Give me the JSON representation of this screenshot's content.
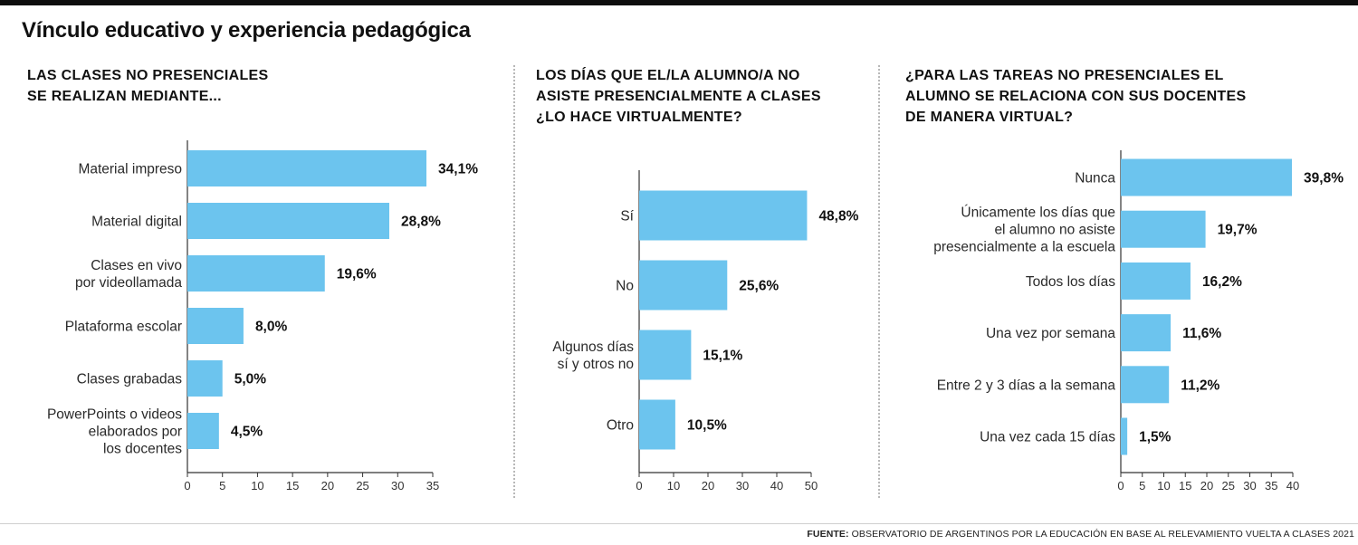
{
  "title": "Vínculo educativo y experiencia pedagógica",
  "footer": {
    "label": "FUENTE:",
    "text": "OBSERVATORIO DE ARGENTINOS POR LA EDUCACIÓN EN BASE AL RELEVAMIENTO VUELTA A CLASES 2021"
  },
  "colors": {
    "bar": "#6cc4ee",
    "axis": "#333333"
  },
  "chart_data": [
    {
      "type": "bar",
      "orientation": "horizontal",
      "title": "LAS CLASES NO PRESENCIALES\nSE REALIZAN MEDIANTE...",
      "categories": [
        [
          "Material impreso"
        ],
        [
          "Material digital"
        ],
        [
          "Clases en vivo",
          "por videollamada"
        ],
        [
          "Plataforma escolar"
        ],
        [
          "Clases grabadas"
        ],
        [
          "PowerPoints o videos",
          "elaborados por",
          "los docentes"
        ]
      ],
      "values": [
        34.1,
        28.8,
        19.6,
        8.0,
        5.0,
        4.5
      ],
      "value_labels": [
        "34,1%",
        "28,8%",
        "19,6%",
        "8,0%",
        "5,0%",
        "4,5%"
      ],
      "xlim": [
        0,
        35
      ],
      "xticks": [
        0,
        5,
        10,
        15,
        20,
        25,
        30,
        35
      ],
      "grid": false
    },
    {
      "type": "bar",
      "orientation": "horizontal",
      "title": "LOS DÍAS QUE EL/LA ALUMNO/A NO\nASISTE PRESENCIALMENTE A CLASES\n¿LO HACE VIRTUALMENTE?",
      "categories": [
        [
          "Sí"
        ],
        [
          "No"
        ],
        [
          "Algunos días",
          "sí y otros no"
        ],
        [
          "Otro"
        ]
      ],
      "values": [
        48.8,
        25.6,
        15.1,
        10.5
      ],
      "value_labels": [
        "48,8%",
        "25,6%",
        "15,1%",
        "10,5%"
      ],
      "xlim": [
        0,
        50
      ],
      "xticks": [
        0,
        10,
        20,
        30,
        40,
        50
      ],
      "grid": false
    },
    {
      "type": "bar",
      "orientation": "horizontal",
      "title": "¿PARA LAS TAREAS NO PRESENCIALES EL\nALUMNO SE RELACIONA CON SUS DOCENTES\nDE MANERA VIRTUAL?",
      "categories": [
        [
          "Nunca"
        ],
        [
          "Únicamente los días que",
          "el alumno no asiste",
          "presencialmente a la escuela"
        ],
        [
          "Todos los días"
        ],
        [
          "Una vez por semana"
        ],
        [
          "Entre 2 y 3 días a la semana"
        ],
        [
          "Una vez cada 15 días"
        ]
      ],
      "values": [
        39.8,
        19.7,
        16.2,
        11.6,
        11.2,
        1.5
      ],
      "value_labels": [
        "39,8%",
        "19,7%",
        "16,2%",
        "11,6%",
        "11,2%",
        "1,5%"
      ],
      "xlim": [
        0,
        40
      ],
      "xticks": [
        0,
        5,
        10,
        15,
        20,
        25,
        30,
        35,
        40
      ],
      "grid": false
    }
  ]
}
